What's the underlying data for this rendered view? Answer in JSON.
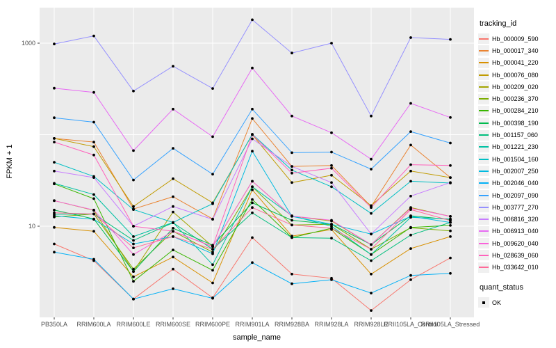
{
  "chart_data": {
    "type": "line",
    "title": "",
    "xlabel": "sample_name",
    "ylabel": "FPKM + 1",
    "y_scale": "log10",
    "ylim": [
      1,
      2300
    ],
    "y_ticks": [
      10,
      1000
    ],
    "y_tick_labels": [
      "10",
      "1000"
    ],
    "y_major_gridlines": [
      10,
      100,
      1000
    ],
    "grid": "on",
    "panel_color": "#EBEBEB",
    "gridline_color": "#FFFFFF",
    "point_color": "#000000",
    "legend_position": "right",
    "legend_title": "tracking_id",
    "legend2_title": "quant_status",
    "quant_status_label": "OK",
    "x_categories": [
      "PB350LA",
      "RRIM600LA",
      "RRIM600LE",
      "RRIM600SE",
      "RRIM600PE",
      "RRIM901LA",
      "RRIM928BA",
      "RRIM928LA",
      "RRIM928LE",
      "RRII105LA_Control",
      "RRII105LA_Stressed"
    ],
    "series": [
      {
        "name": "Hb_000009_590",
        "color": "#F8766D",
        "values": [
          6.4,
          4.2,
          1.6,
          3.4,
          1.65,
          7.5,
          3.0,
          2.7,
          1.2,
          2.6,
          4.5
        ]
      },
      {
        "name": "Hb_000017_340",
        "color": "#EA8331",
        "values": [
          91,
          83,
          15.4,
          21,
          12,
          150,
          45,
          46,
          16.4,
          77,
          34
        ]
      },
      {
        "name": "Hb_000041_220",
        "color": "#D89000",
        "values": [
          9.7,
          8.8,
          2.8,
          4.6,
          2.4,
          25,
          7.8,
          9.2,
          3.0,
          5.7,
          7.7
        ]
      },
      {
        "name": "Hb_000076_080",
        "color": "#C09B00",
        "values": [
          91,
          74,
          16.4,
          33,
          18,
          100,
          30,
          36,
          16.8,
          40,
          34
        ]
      },
      {
        "name": "Hb_000209_020",
        "color": "#A3A500",
        "values": [
          19,
          14.9,
          3.2,
          14.3,
          6.0,
          31,
          12.9,
          11.4,
          6.3,
          16,
          12.8
        ]
      },
      {
        "name": "Hb_000236_370",
        "color": "#7CAE00",
        "values": [
          12.6,
          13.6,
          3.4,
          8.8,
          5.2,
          27,
          10.3,
          10.5,
          5.6,
          9.6,
          8.9
        ]
      },
      {
        "name": "Hb_000284_210",
        "color": "#39B600",
        "values": [
          29,
          20,
          2.5,
          5.5,
          3.3,
          19.6,
          7.5,
          9.5,
          4.9,
          9.7,
          10.2
        ]
      },
      {
        "name": "Hb_000398_190",
        "color": "#00BB4E",
        "values": [
          15,
          12,
          3.2,
          9.5,
          6.2,
          18,
          11.6,
          10.5,
          6.3,
          13,
          11.8
        ]
      },
      {
        "name": "Hb_001157_060",
        "color": "#00BF7D",
        "values": [
          13.5,
          13.6,
          7.0,
          10.9,
          5.6,
          14,
          7.5,
          7.4,
          4.2,
          8.0,
          11.0
        ]
      },
      {
        "name": "Hb_001221_230",
        "color": "#00C1A3",
        "values": [
          29.4,
          22.2,
          7.7,
          11,
          3.8,
          27,
          13,
          10,
          4.9,
          12.5,
          12
        ]
      },
      {
        "name": "Hb_001504_160",
        "color": "#00BFC4",
        "values": [
          50,
          35,
          15.2,
          11,
          17.6,
          101,
          41,
          27,
          13.8,
          31,
          29.6
        ]
      },
      {
        "name": "Hb_002007_250",
        "color": "#00BAE0",
        "values": [
          13,
          11.9,
          6.4,
          7.7,
          5.0,
          66,
          12.8,
          10.5,
          8.2,
          12.8,
          11
        ]
      },
      {
        "name": "Hb_002046_040",
        "color": "#00B0F6",
        "values": [
          5.2,
          4.35,
          1.6,
          2.07,
          1.63,
          4.0,
          2.35,
          2.6,
          1.86,
          2.9,
          3.05
        ]
      },
      {
        "name": "Hb_002097_090",
        "color": "#35A2FF",
        "values": [
          153,
          137,
          32,
          71,
          37,
          190,
          63.5,
          64.6,
          42,
          108,
          81
        ]
      },
      {
        "name": "Hb_003777_270",
        "color": "#9590FF",
        "values": [
          980,
          1200,
          300,
          560,
          320,
          1800,
          780,
          1000,
          160,
          1150,
          1100
        ]
      },
      {
        "name": "Hb_006816_320",
        "color": "#C77CFF",
        "values": [
          40,
          34,
          10,
          16.4,
          11.9,
          90,
          45,
          30,
          8.2,
          21.3,
          30
        ]
      },
      {
        "name": "Hb_006913_040",
        "color": "#E76BF3",
        "values": [
          322,
          290,
          67,
          190,
          95,
          535,
          160,
          105,
          54,
          220,
          154
        ]
      },
      {
        "name": "Hb_009620_040",
        "color": "#FA62DB",
        "values": [
          19,
          15,
          4.9,
          8.8,
          6.0,
          31,
          12.9,
          11.6,
          6.3,
          15.7,
          12.8
        ]
      },
      {
        "name": "Hb_028639_060",
        "color": "#FF62BC",
        "values": [
          83,
          60,
          10,
          8.8,
          6.0,
          100,
          38,
          43,
          16,
          47,
          46
        ]
      },
      {
        "name": "Hb_033642_010",
        "color": "#FF6A98",
        "values": [
          14,
          13.6,
          5.8,
          7.7,
          5.6,
          16,
          10.3,
          9.5,
          5.6,
          15.2,
          11.5
        ]
      }
    ]
  }
}
